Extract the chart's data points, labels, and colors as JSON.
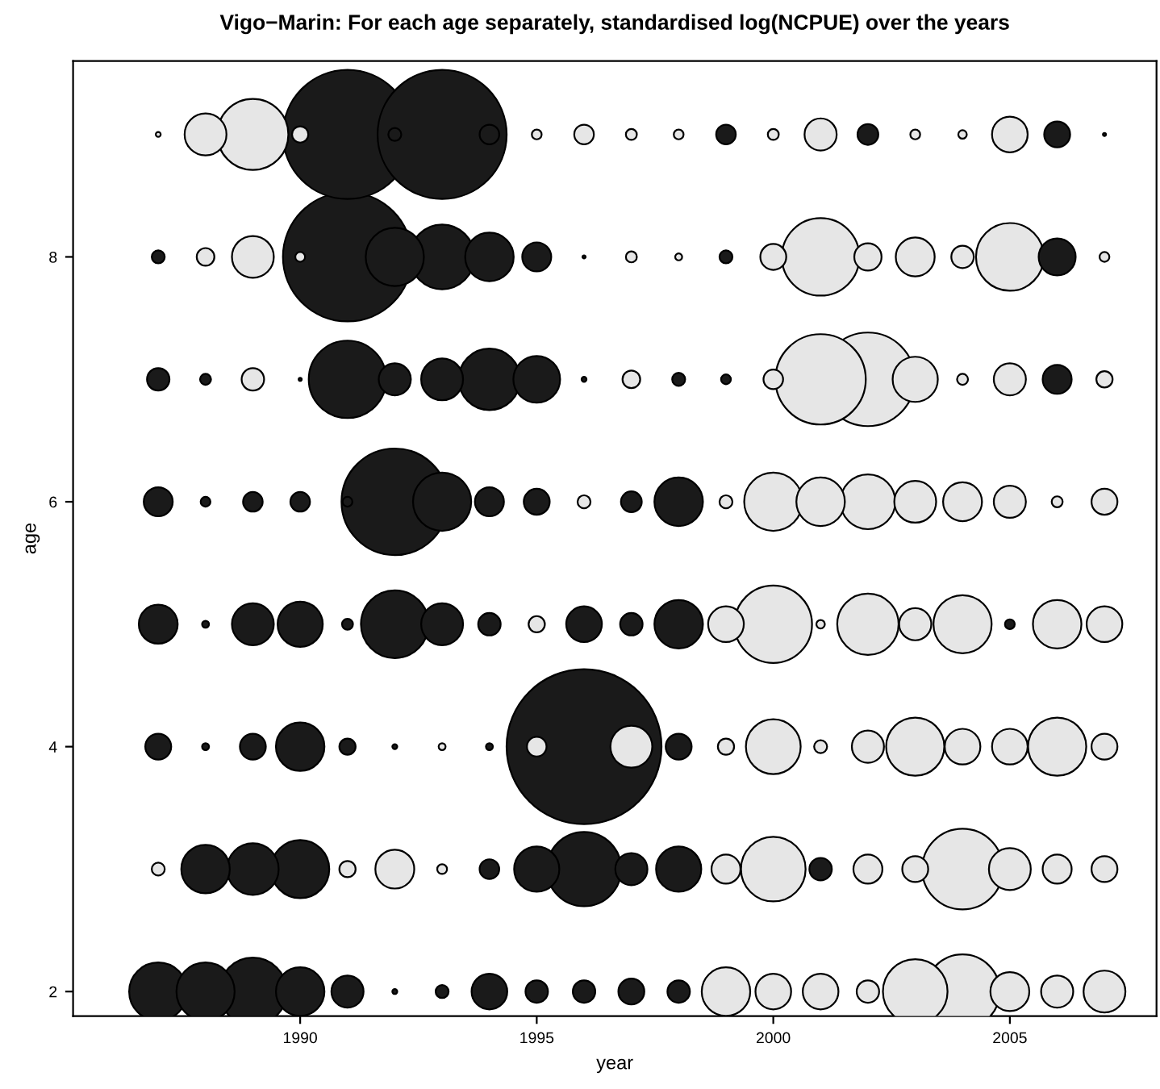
{
  "chart_data": {
    "type": "bubble",
    "title": "Vigo−Marin: For each age separately, standardised log(NCPUE) over the years",
    "xlabel": "year",
    "ylabel": "age",
    "x": [
      1987,
      1988,
      1989,
      1990,
      1991,
      1992,
      1993,
      1994,
      1995,
      1996,
      1997,
      1998,
      1999,
      2000,
      2001,
      2002,
      2003,
      2004,
      2005,
      2006,
      2007
    ],
    "xlim": [
      1985.2,
      2008.1
    ],
    "xticks": [
      1990,
      1995,
      2000,
      2005
    ],
    "ylim": [
      1.8,
      9.6
    ],
    "yticks": [
      2,
      4,
      6,
      8
    ],
    "grid": false,
    "legend": false,
    "marker": "circle",
    "series": [
      {
        "values": [
          2,
          2,
          2,
          2,
          2,
          2,
          2,
          2,
          2,
          2,
          2,
          2,
          2,
          2,
          2,
          2,
          2,
          2,
          2,
          2,
          2
        ],
        "sizes": [
          0.141,
          0.141,
          0.191,
          0.098,
          0.043,
          0.001,
          0.007,
          0.053,
          0.021,
          0.021,
          0.028,
          0.021,
          0.098,
          0.053,
          0.053,
          0.021,
          0.174,
          0.23,
          0.063,
          0.043,
          0.073
        ],
        "colors": [
          "#1a1a1a",
          "#1a1a1a",
          "#1a1a1a",
          "#1a1a1a",
          "#1a1a1a",
          "#1a1a1a",
          "#1a1a1a",
          "#1a1a1a",
          "#1a1a1a",
          "#1a1a1a",
          "#1a1a1a",
          "#1a1a1a",
          "#e6e6e6",
          "#e6e6e6",
          "#e6e6e6",
          "#e6e6e6",
          "#e6e6e6",
          "#e6e6e6",
          "#e6e6e6",
          "#e6e6e6",
          "#e6e6e6"
        ]
      },
      {
        "values": [
          3,
          3,
          3,
          3,
          3,
          3,
          3,
          3,
          3,
          3,
          3,
          3,
          3,
          3,
          3,
          3,
          3,
          3,
          3,
          3,
          3
        ],
        "sizes": [
          0.007,
          0.098,
          0.111,
          0.141,
          0.011,
          0.063,
          0.004,
          0.016,
          0.085,
          0.23,
          0.043,
          0.085,
          0.035,
          0.174,
          0.021,
          0.035,
          0.028,
          0.271,
          0.073,
          0.035,
          0.028
        ],
        "colors": [
          "#e6e6e6",
          "#1a1a1a",
          "#1a1a1a",
          "#1a1a1a",
          "#e6e6e6",
          "#e6e6e6",
          "#e6e6e6",
          "#1a1a1a",
          "#1a1a1a",
          "#1a1a1a",
          "#1a1a1a",
          "#1a1a1a",
          "#e6e6e6",
          "#e6e6e6",
          "#1a1a1a",
          "#e6e6e6",
          "#e6e6e6",
          "#e6e6e6",
          "#e6e6e6",
          "#e6e6e6",
          "#e6e6e6"
        ]
      },
      {
        "values": [
          4,
          4,
          4,
          4,
          4,
          4,
          4,
          4,
          4,
          4,
          4,
          4,
          4,
          4,
          4,
          4,
          4,
          4,
          4,
          4,
          4
        ],
        "sizes": [
          0.028,
          0.002,
          0.028,
          0.098,
          0.011,
          0.001,
          0.002,
          0.002,
          0.016,
          1,
          0.073,
          0.028,
          0.011,
          0.125,
          0.007,
          0.043,
          0.141,
          0.053,
          0.053,
          0.141,
          0.028
        ],
        "colors": [
          "#1a1a1a",
          "#1a1a1a",
          "#1a1a1a",
          "#1a1a1a",
          "#1a1a1a",
          "#1a1a1a",
          "#e6e6e6",
          "#1a1a1a",
          "#e6e6e6",
          "#1a1a1a",
          "#e6e6e6",
          "#1a1a1a",
          "#e6e6e6",
          "#e6e6e6",
          "#e6e6e6",
          "#e6e6e6",
          "#e6e6e6",
          "#e6e6e6",
          "#e6e6e6",
          "#e6e6e6",
          "#e6e6e6"
        ]
      },
      {
        "values": [
          5,
          5,
          5,
          5,
          5,
          5,
          5,
          5,
          5,
          5,
          5,
          5,
          5,
          5,
          5,
          5,
          5,
          5,
          5,
          5,
          5
        ],
        "sizes": [
          0.063,
          0.002,
          0.073,
          0.085,
          0.005,
          0.191,
          0.073,
          0.021,
          0.011,
          0.053,
          0.021,
          0.098,
          0.053,
          0.25,
          0.003,
          0.157,
          0.043,
          0.141,
          0.004,
          0.098,
          0.053
        ],
        "colors": [
          "#1a1a1a",
          "#1a1a1a",
          "#1a1a1a",
          "#1a1a1a",
          "#1a1a1a",
          "#1a1a1a",
          "#1a1a1a",
          "#1a1a1a",
          "#e6e6e6",
          "#1a1a1a",
          "#1a1a1a",
          "#1a1a1a",
          "#e6e6e6",
          "#e6e6e6",
          "#e6e6e6",
          "#e6e6e6",
          "#e6e6e6",
          "#e6e6e6",
          "#1a1a1a",
          "#e6e6e6",
          "#e6e6e6"
        ]
      },
      {
        "values": [
          6,
          6,
          6,
          6,
          6,
          6,
          6,
          6,
          6,
          6,
          6,
          6,
          6,
          6,
          6,
          6,
          6,
          6,
          6,
          6,
          6
        ],
        "sizes": [
          0.035,
          0.004,
          0.016,
          0.016,
          0.004,
          0.473,
          0.141,
          0.035,
          0.028,
          0.007,
          0.018,
          0.098,
          0.007,
          0.141,
          0.098,
          0.125,
          0.073,
          0.063,
          0.043,
          0.005,
          0.028
        ],
        "colors": [
          "#1a1a1a",
          "#1a1a1a",
          "#1a1a1a",
          "#1a1a1a",
          "#1a1a1a",
          "#1a1a1a",
          "#1a1a1a",
          "#1a1a1a",
          "#1a1a1a",
          "#e6e6e6",
          "#1a1a1a",
          "#1a1a1a",
          "#e6e6e6",
          "#e6e6e6",
          "#e6e6e6",
          "#e6e6e6",
          "#e6e6e6",
          "#e6e6e6",
          "#e6e6e6",
          "#e6e6e6",
          "#e6e6e6"
        ]
      },
      {
        "values": [
          7,
          7,
          7,
          7,
          7,
          7,
          7,
          7,
          7,
          7,
          7,
          7,
          7,
          7,
          7,
          7,
          7,
          7,
          7,
          7,
          7
        ],
        "sizes": [
          0.021,
          0.005,
          0.021,
          0.0004,
          0.25,
          0.043,
          0.073,
          0.157,
          0.091,
          0.001,
          0.013,
          0.007,
          0.004,
          0.016,
          0.34,
          0.365,
          0.085,
          0.005,
          0.043,
          0.035,
          0.011
        ],
        "colors": [
          "#1a1a1a",
          "#1a1a1a",
          "#e6e6e6",
          "#1a1a1a",
          "#1a1a1a",
          "#1a1a1a",
          "#1a1a1a",
          "#1a1a1a",
          "#1a1a1a",
          "#1a1a1a",
          "#e6e6e6",
          "#1a1a1a",
          "#1a1a1a",
          "#e6e6e6",
          "#e6e6e6",
          "#e6e6e6",
          "#e6e6e6",
          "#e6e6e6",
          "#e6e6e6",
          "#1a1a1a",
          "#e6e6e6"
        ]
      },
      {
        "values": [
          8,
          8,
          8,
          8,
          8,
          8,
          8,
          8,
          8,
          8,
          8,
          8,
          8,
          8,
          8,
          8,
          8,
          8,
          8,
          8,
          8
        ],
        "sizes": [
          0.007,
          0.013,
          0.073,
          0.004,
          0.694,
          0.141,
          0.174,
          0.098,
          0.035,
          0.0004,
          0.005,
          0.002,
          0.007,
          0.028,
          0.25,
          0.031,
          0.063,
          0.021,
          0.191,
          0.057,
          0.004
        ],
        "colors": [
          "#1a1a1a",
          "#e6e6e6",
          "#e6e6e6",
          "#e6e6e6",
          "#1a1a1a",
          "#1a1a1a",
          "#1a1a1a",
          "#1a1a1a",
          "#1a1a1a",
          "#1a1a1a",
          "#e6e6e6",
          "#e6e6e6",
          "#1a1a1a",
          "#e6e6e6",
          "#e6e6e6",
          "#e6e6e6",
          "#e6e6e6",
          "#e6e6e6",
          "#e6e6e6",
          "#1a1a1a",
          "#e6e6e6"
        ]
      },
      {
        "values": [
          9,
          9,
          9,
          9,
          9,
          9,
          9,
          9,
          9,
          9,
          9,
          9,
          9,
          9,
          9,
          9,
          9,
          9,
          9,
          9,
          9
        ],
        "sizes": [
          0.001,
          0.073,
          0.21,
          0.011,
          0.694,
          0.007,
          0.694,
          0.016,
          0.004,
          0.016,
          0.005,
          0.004,
          0.016,
          0.005,
          0.043,
          0.018,
          0.004,
          0.003,
          0.053,
          0.028,
          0.0004
        ],
        "colors": [
          "#e6e6e6",
          "#e6e6e6",
          "#e6e6e6",
          "#e6e6e6",
          "#1a1a1a",
          "#1a1a1a",
          "#1a1a1a",
          "#1a1a1a",
          "#e6e6e6",
          "#e6e6e6",
          "#e6e6e6",
          "#e6e6e6",
          "#1a1a1a",
          "#e6e6e6",
          "#e6e6e6",
          "#1a1a1a",
          "#e6e6e6",
          "#e6e6e6",
          "#e6e6e6",
          "#1a1a1a",
          "#1a1a1a"
        ]
      }
    ]
  }
}
